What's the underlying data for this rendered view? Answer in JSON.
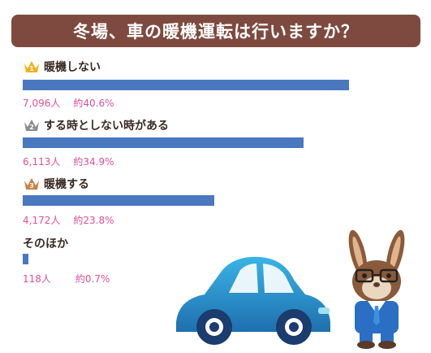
{
  "title": "冬場、車の暖機運転は行いますか？",
  "chart_data": {
    "type": "bar",
    "title": "冬場、車の暖機運転は行いますか？",
    "categories": [
      "暖機しない",
      "する時としない時がある",
      "暖機する",
      "そのほか"
    ],
    "values_percent": [
      40.6,
      34.9,
      23.8,
      0.7
    ],
    "values_count": [
      7096,
      6113,
      4172,
      118
    ],
    "series": [
      {
        "name": "",
        "values": [
          40.6,
          34.9,
          23.8,
          0.7
        ]
      }
    ],
    "xlim": [
      0,
      42
    ]
  },
  "items": [
    {
      "rank": "1",
      "label": "暖機しない",
      "count": "7,096人",
      "pct": "約40.6%",
      "badge_color": "#f0b21c"
    },
    {
      "rank": "2",
      "label": "する時としない時がある",
      "count": "6,113人",
      "pct": "約34.9%",
      "badge_color": "#8d8d8d"
    },
    {
      "rank": "3",
      "label": "暖機する",
      "count": "4,172人",
      "pct": "約23.8%",
      "badge_color": "#c9804a"
    },
    {
      "rank": "",
      "label": "そのほか",
      "count": "118人",
      "pct": "約0.7%",
      "badge_color": ""
    }
  ],
  "colors": {
    "title_bg": "#7e4a3f",
    "bar": "#4a78bf",
    "value_text": "#e0509a",
    "label_text": "#3a2a24"
  },
  "icons": {
    "rank_badge": "crown-icon",
    "car": "car-illustration",
    "mascot": "rabbit-illustration"
  }
}
